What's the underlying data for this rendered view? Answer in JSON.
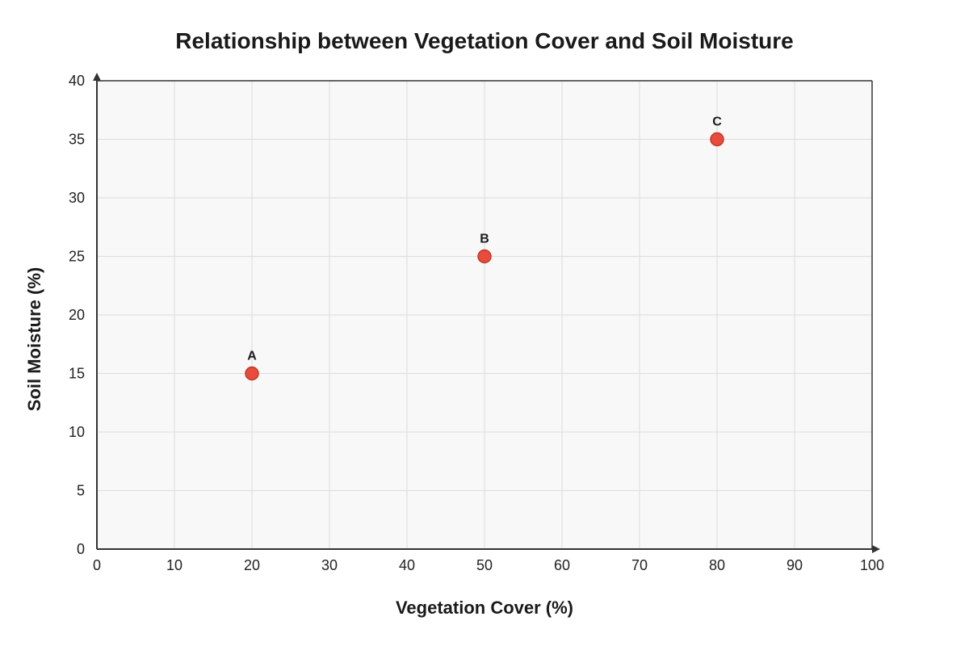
{
  "chart_data": {
    "type": "scatter",
    "title": "Relationship between Vegetation Cover and Soil Moisture",
    "xlabel": "Vegetation Cover (%)",
    "ylabel": "Soil Moisture (%)",
    "xlim": [
      0,
      100
    ],
    "ylim": [
      0,
      40
    ],
    "x_ticks": [
      0,
      10,
      20,
      30,
      40,
      50,
      60,
      70,
      80,
      90,
      100
    ],
    "y_ticks": [
      0,
      5,
      10,
      15,
      20,
      25,
      30,
      35,
      40
    ],
    "grid": true,
    "legend": "none",
    "points": [
      {
        "label": "A",
        "x": 20,
        "y": 15
      },
      {
        "label": "B",
        "x": 50,
        "y": 25
      },
      {
        "label": "C",
        "x": 80,
        "y": 35
      }
    ],
    "colors": {
      "point_fill": "#e74c3c",
      "point_stroke": "#c0392b",
      "plot_background": "#f8f8f8",
      "grid": "#dcdcdc",
      "axis": "#333333"
    }
  }
}
